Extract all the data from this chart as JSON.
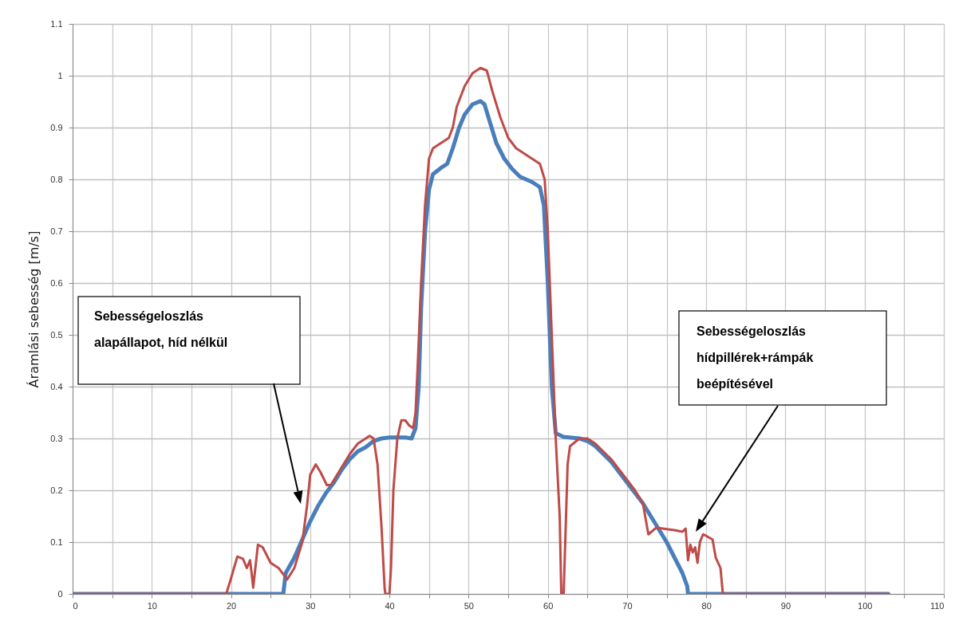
{
  "chart_data": {
    "type": "line",
    "ylabel": "Áramlási sebesség [m/s]",
    "xlim": [
      0,
      110
    ],
    "xticks": [
      0,
      {
        "value": 5,
        "label": null
      },
      10,
      {
        "value": 15,
        "label": null
      },
      20,
      {
        "value": 25,
        "label": null
      },
      30,
      {
        "value": 35,
        "label": null
      },
      40,
      {
        "value": 45,
        "label": null
      },
      50,
      {
        "value": 55,
        "label": null
      },
      60,
      {
        "value": 65,
        "label": null
      },
      70,
      {
        "value": 75,
        "label": null
      },
      80,
      {
        "value": 85,
        "label": null
      },
      90,
      {
        "value": 95,
        "label": null
      },
      100,
      {
        "value": 105,
        "label": null
      },
      110
    ],
    "ylim": [
      0,
      1.1
    ],
    "yticks": [
      0,
      0.1,
      0.2,
      0.3,
      0.4,
      0.5,
      0.6,
      0.7,
      0.8,
      0.9,
      1,
      1.1
    ],
    "grid": true,
    "marker": "none",
    "line_style": "solid",
    "series": [
      {
        "color": "#4a7ebb",
        "x": [
          0,
          26.6,
          26.9,
          28,
          29,
          30,
          31,
          32,
          33,
          34,
          35,
          36,
          37,
          38,
          39,
          40,
          42,
          42.8,
          43.3,
          43.7,
          44,
          44.5,
          45,
          45.5,
          46.5,
          47.3,
          48,
          48.8,
          49.5,
          50.5,
          51.5,
          52,
          52.7,
          53.5,
          54.5,
          55.5,
          56.5,
          58,
          59,
          59.5,
          60,
          60.5,
          61,
          62,
          64,
          65,
          66,
          67,
          68,
          69,
          70,
          71,
          72,
          73,
          74,
          75,
          76,
          77,
          77.6,
          77.7,
          103
        ],
        "values": [
          0,
          0,
          0.04,
          0.07,
          0.105,
          0.14,
          0.17,
          0.195,
          0.215,
          0.24,
          0.26,
          0.275,
          0.283,
          0.295,
          0.3,
          0.302,
          0.302,
          0.3,
          0.32,
          0.4,
          0.55,
          0.7,
          0.78,
          0.81,
          0.822,
          0.83,
          0.86,
          0.9,
          0.925,
          0.945,
          0.951,
          0.945,
          0.91,
          0.87,
          0.84,
          0.82,
          0.805,
          0.795,
          0.785,
          0.75,
          0.6,
          0.4,
          0.31,
          0.303,
          0.3,
          0.295,
          0.285,
          0.27,
          0.255,
          0.235,
          0.215,
          0.195,
          0.175,
          0.15,
          0.125,
          0.1,
          0.07,
          0.04,
          0.015,
          0,
          0
        ]
      },
      {
        "color": "#be4b48",
        "x": [
          0,
          19.4,
          20,
          20.8,
          21.5,
          22,
          22.4,
          22.6,
          22.8,
          23.4,
          24,
          24.5,
          25,
          26,
          27.1,
          28,
          29,
          29.6,
          30,
          30.7,
          31.3,
          32.1,
          32.6,
          33,
          34,
          35,
          36,
          37,
          37.5,
          38,
          38.5,
          39,
          39.4,
          39.5,
          40,
          40.2,
          40.5,
          41,
          41.5,
          42,
          42.5,
          43,
          43.3,
          43.6,
          44,
          44.5,
          45,
          45.5,
          46.5,
          47.5,
          48,
          48.5,
          49.5,
          50.5,
          51.5,
          52.3,
          53,
          54,
          55,
          56,
          57,
          58,
          59,
          59.6,
          60,
          60.5,
          61,
          61.5,
          61.7,
          62,
          62.2,
          62.5,
          62.8,
          64,
          65,
          66,
          67,
          68,
          69,
          70,
          71,
          72,
          72.7,
          73.7,
          75,
          76,
          77,
          77.4,
          77.7,
          78,
          78.3,
          78.6,
          78.9,
          79.2,
          79.6,
          80,
          80.8,
          81.2,
          81.8,
          82.1,
          82.2,
          103
        ],
        "values": [
          0,
          0,
          0.03,
          0.072,
          0.068,
          0.05,
          0.065,
          0.04,
          0.012,
          0.095,
          0.09,
          0.075,
          0.06,
          0.05,
          0.028,
          0.05,
          0.1,
          0.17,
          0.23,
          0.25,
          0.235,
          0.21,
          0.21,
          0.22,
          0.245,
          0.27,
          0.29,
          0.3,
          0.305,
          0.3,
          0.25,
          0.13,
          0.01,
          0,
          0,
          0.05,
          0.2,
          0.3,
          0.335,
          0.335,
          0.325,
          0.32,
          0.35,
          0.45,
          0.6,
          0.75,
          0.84,
          0.86,
          0.87,
          0.88,
          0.9,
          0.94,
          0.98,
          1.005,
          1.015,
          1.01,
          0.97,
          0.92,
          0.88,
          0.86,
          0.85,
          0.84,
          0.83,
          0.8,
          0.7,
          0.5,
          0.3,
          0.15,
          0,
          0,
          0.1,
          0.25,
          0.285,
          0.3,
          0.3,
          0.29,
          0.275,
          0.26,
          0.24,
          0.22,
          0.2,
          0.175,
          0.115,
          0.128,
          0.125,
          0.123,
          0.12,
          0.126,
          0.065,
          0.095,
          0.08,
          0.09,
          0.06,
          0.1,
          0.115,
          0.112,
          0.105,
          0.07,
          0.05,
          0,
          0,
          0
        ]
      }
    ],
    "annotations": [
      "Sebességeloszlás\nalapállapot, híd nélkül",
      "Sebességeloszlás\nhídpillérek+rámpák\nbeépítésével"
    ]
  }
}
